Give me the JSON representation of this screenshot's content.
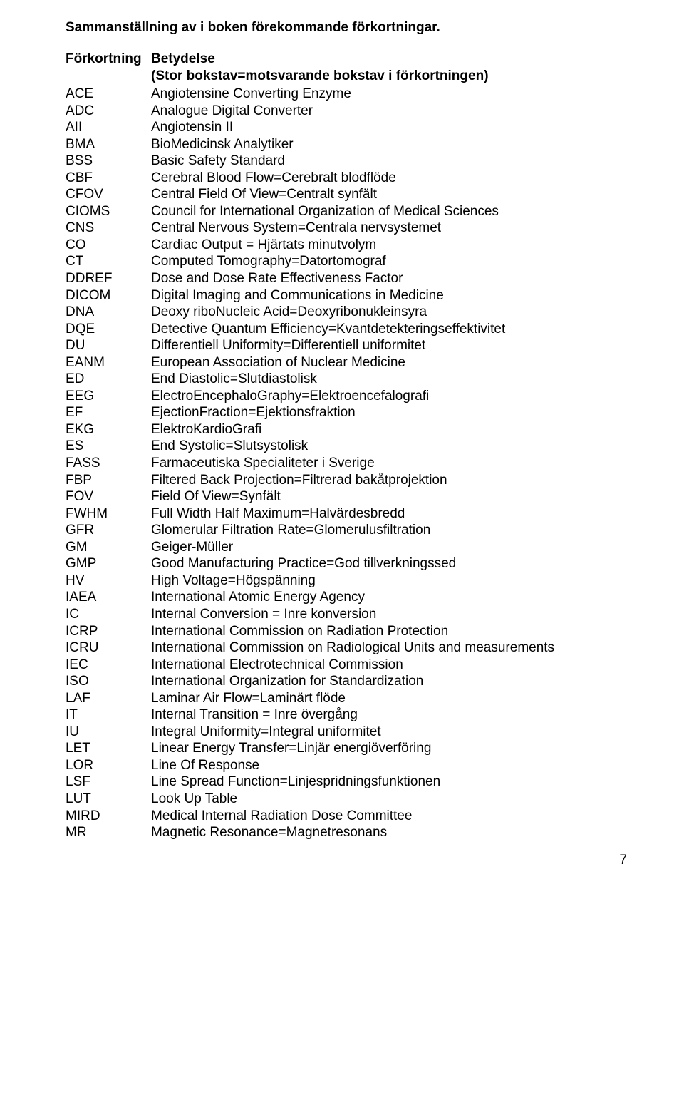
{
  "page_title": "Sammanställning av i boken förekommande förkortningar.",
  "header_left": "Förkortning",
  "header_right": "Betydelse",
  "subheader": "(Stor bokstav=motsvarande bokstav i förkortningen)",
  "page_number": "7",
  "rows": [
    {
      "abbr": "ACE",
      "meaning": "Angiotensine Converting Enzyme"
    },
    {
      "abbr": "ADC",
      "meaning": "Analogue Digital Converter"
    },
    {
      "abbr": "AII",
      "meaning": "Angiotensin II"
    },
    {
      "abbr": "BMA",
      "meaning": "BioMedicinsk Analytiker"
    },
    {
      "abbr": "BSS",
      "meaning": "Basic Safety Standard"
    },
    {
      "abbr": "CBF",
      "meaning": "Cerebral Blood Flow=Cerebralt blodflöde"
    },
    {
      "abbr": "CFOV",
      "meaning": "Central Field Of View=Centralt synfält"
    },
    {
      "abbr": "CIOMS",
      "meaning": "Council for International Organization of Medical Sciences"
    },
    {
      "abbr": "CNS",
      "meaning": "Central Nervous System=Centrala nervsystemet"
    },
    {
      "abbr": "CO",
      "meaning": "Cardiac Output = Hjärtats minutvolym"
    },
    {
      "abbr": "CT",
      "meaning": "Computed Tomography=Datortomograf"
    },
    {
      "abbr": "DDREF",
      "meaning": "Dose and Dose Rate Effectiveness Factor"
    },
    {
      "abbr": "DICOM",
      "meaning": "Digital Imaging and Communications in Medicine"
    },
    {
      "abbr": "DNA",
      "meaning": "Deoxy riboNucleic Acid=Deoxyribonukleinsyra"
    },
    {
      "abbr": "DQE",
      "meaning": "Detective Quantum Efficiency=Kvantdetekteringseffektivitet"
    },
    {
      "abbr": "DU",
      "meaning": "Differentiell Uniformity=Differentiell uniformitet"
    },
    {
      "abbr": "EANM",
      "meaning": "European Association of Nuclear Medicine"
    },
    {
      "abbr": "ED",
      "meaning": "End Diastolic=Slutdiastolisk"
    },
    {
      "abbr": "EEG",
      "meaning": "ElectroEncephaloGraphy=Elektroencefalografi"
    },
    {
      "abbr": "EF",
      "meaning": "EjectionFraction=Ejektionsfraktion"
    },
    {
      "abbr": "EKG",
      "meaning": "ElektroKardioGrafi"
    },
    {
      "abbr": "ES",
      "meaning": "End Systolic=Slutsystolisk"
    },
    {
      "abbr": "FASS",
      "meaning": "Farmaceutiska Specialiteter i Sverige"
    },
    {
      "abbr": "FBP",
      "meaning": "Filtered Back Projection=Filtrerad bakåtprojektion"
    },
    {
      "abbr": "FOV",
      "meaning": "Field Of View=Synfält"
    },
    {
      "abbr": "FWHM",
      "meaning": "Full Width Half Maximum=Halvärdesbredd"
    },
    {
      "abbr": "GFR",
      "meaning": "Glomerular Filtration Rate=Glomerulusfiltration"
    },
    {
      "abbr": "GM",
      "meaning": "Geiger-Müller"
    },
    {
      "abbr": "GMP",
      "meaning": "Good Manufacturing Practice=God tillverkningssed"
    },
    {
      "abbr": "HV",
      "meaning": "High Voltage=Högspänning"
    },
    {
      "abbr": "IAEA",
      "meaning": "International Atomic Energy Agency"
    },
    {
      "abbr": "IC",
      "meaning": "Internal Conversion = Inre konversion"
    },
    {
      "abbr": "ICRP",
      "meaning": "International Commission on Radiation Protection"
    },
    {
      "abbr": "ICRU",
      "meaning": "International Commission on Radiological Units and measurements"
    },
    {
      "abbr": "IEC",
      "meaning": "International Electrotechnical Commission"
    },
    {
      "abbr": "ISO",
      "meaning": "International Organization for Standardization"
    },
    {
      "abbr": "LAF",
      "meaning": "Laminar Air Flow=Laminärt flöde"
    },
    {
      "abbr": "IT",
      "meaning": "Internal Transition = Inre övergång"
    },
    {
      "abbr": "IU",
      "meaning": "Integral Uniformity=Integral uniformitet"
    },
    {
      "abbr": "LET",
      "meaning": "Linear Energy Transfer=Linjär energiöverföring"
    },
    {
      "abbr": "LOR",
      "meaning": "Line Of Response"
    },
    {
      "abbr": "LSF",
      "meaning": "Line Spread Function=Linjespridningsfunktionen"
    },
    {
      "abbr": "LUT",
      "meaning": "Look Up Table"
    },
    {
      "abbr": "MIRD",
      "meaning": "Medical Internal Radiation Dose Committee"
    },
    {
      "abbr": "MR",
      "meaning": "Magnetic Resonance=Magnetresonans"
    }
  ]
}
